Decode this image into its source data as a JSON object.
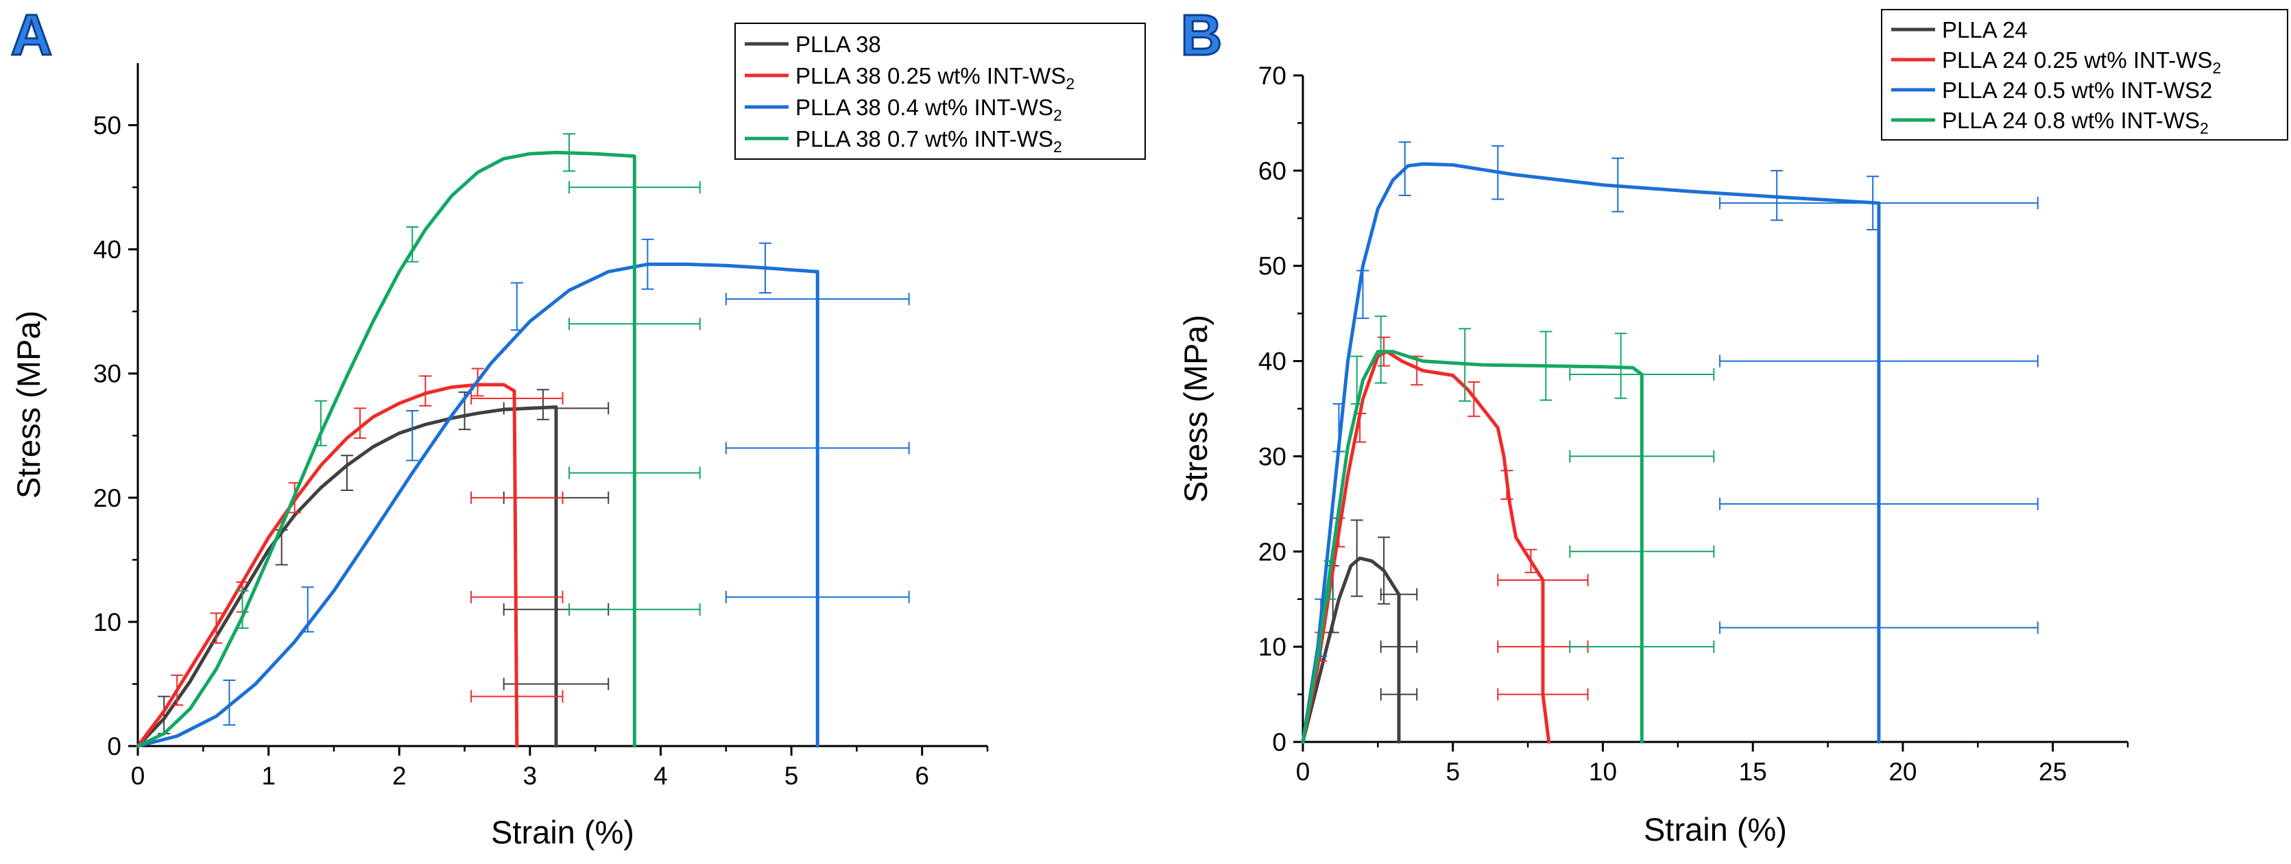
{
  "chart_data": [
    {
      "type": "line",
      "panel_label": "A",
      "xlabel": "Strain (%)",
      "ylabel": "Stress (MPa)",
      "xlim": [
        0,
        6.5
      ],
      "ylim": [
        0,
        55
      ],
      "xticks": [
        0,
        1,
        2,
        3,
        4,
        5,
        6
      ],
      "yticks": [
        0,
        10,
        20,
        30,
        40,
        50
      ],
      "legend_position": "top-right",
      "series": [
        {
          "name": "PLLA 38",
          "legend_main": "PLLA 38",
          "legend_sub": "",
          "legend_tail": "",
          "color": "#404040",
          "points": [
            [
              0,
              0
            ],
            [
              0.2,
              2.2
            ],
            [
              0.4,
              5.2
            ],
            [
              0.6,
              8.8
            ],
            [
              0.8,
              12.3
            ],
            [
              1.0,
              15.8
            ],
            [
              1.2,
              18.6
            ],
            [
              1.4,
              20.8
            ],
            [
              1.6,
              22.6
            ],
            [
              1.8,
              24.1
            ],
            [
              2.0,
              25.2
            ],
            [
              2.2,
              25.9
            ],
            [
              2.4,
              26.4
            ],
            [
              2.6,
              26.8
            ],
            [
              2.8,
              27.1
            ],
            [
              3.0,
              27.2
            ],
            [
              3.2,
              27.3
            ],
            [
              3.2,
              0
            ]
          ],
          "yerr": [
            [
              0.2,
              2.5,
              1.5
            ],
            [
              1.1,
              16,
              1.4
            ],
            [
              1.6,
              22,
              1.4
            ],
            [
              2.5,
              27,
              1.5
            ],
            [
              3.1,
              27.5,
              1.2
            ]
          ],
          "xerr": [
            [
              3.2,
              27.2,
              0.4
            ],
            [
              3.2,
              20,
              0.4
            ],
            [
              3.2,
              11,
              0.4
            ],
            [
              3.2,
              5,
              0.4
            ]
          ]
        },
        {
          "name": "PLLA 38 0.25 wt% INT-WS2",
          "legend_main": "PLLA 38 0.25 wt% INT-WS",
          "legend_sub": "2",
          "legend_tail": "",
          "color": "#ee2b2b",
          "points": [
            [
              0,
              0
            ],
            [
              0.2,
              2.8
            ],
            [
              0.4,
              6.2
            ],
            [
              0.6,
              9.6
            ],
            [
              0.8,
              13.2
            ],
            [
              1.0,
              16.8
            ],
            [
              1.2,
              19.8
            ],
            [
              1.4,
              22.6
            ],
            [
              1.6,
              24.8
            ],
            [
              1.8,
              26.5
            ],
            [
              2.0,
              27.6
            ],
            [
              2.2,
              28.4
            ],
            [
              2.4,
              28.9
            ],
            [
              2.6,
              29.1
            ],
            [
              2.8,
              29.1
            ],
            [
              2.88,
              28.6
            ],
            [
              2.9,
              0
            ]
          ],
          "yerr": [
            [
              0.3,
              4.5,
              1.2
            ],
            [
              0.6,
              9.5,
              1.2
            ],
            [
              0.8,
              12,
              1.2
            ],
            [
              1.2,
              20,
              1.2
            ],
            [
              1.7,
              26,
              1.2
            ],
            [
              2.2,
              28.6,
              1.2
            ],
            [
              2.6,
              29.3,
              1.1
            ]
          ],
          "xerr": [
            [
              2.9,
              28,
              0.35
            ],
            [
              2.9,
              20,
              0.35
            ],
            [
              2.9,
              12,
              0.35
            ],
            [
              2.9,
              4,
              0.35
            ]
          ]
        },
        {
          "name": "PLLA 38 0.4 wt% INT-WS2",
          "legend_main": "PLLA 38 0.4 wt% INT-WS",
          "legend_sub": "2",
          "legend_tail": "",
          "color": "#1c6fd6",
          "points": [
            [
              0,
              0
            ],
            [
              0.3,
              0.8
            ],
            [
              0.6,
              2.4
            ],
            [
              0.9,
              5.0
            ],
            [
              1.2,
              8.4
            ],
            [
              1.5,
              12.5
            ],
            [
              1.8,
              17.2
            ],
            [
              2.1,
              22.0
            ],
            [
              2.4,
              26.6
            ],
            [
              2.7,
              30.8
            ],
            [
              3.0,
              34.2
            ],
            [
              3.3,
              36.7
            ],
            [
              3.6,
              38.2
            ],
            [
              3.9,
              38.8
            ],
            [
              4.2,
              38.8
            ],
            [
              4.5,
              38.7
            ],
            [
              4.8,
              38.5
            ],
            [
              5.2,
              38.2
            ],
            [
              5.2,
              0
            ]
          ],
          "yerr": [
            [
              0.7,
              3.5,
              1.8
            ],
            [
              1.3,
              11,
              1.8
            ],
            [
              2.1,
              25,
              2.0
            ],
            [
              2.9,
              35.4,
              1.9
            ],
            [
              3.9,
              38.8,
              2.0
            ],
            [
              4.8,
              38.5,
              2.0
            ]
          ],
          "xerr": [
            [
              5.2,
              36,
              0.7
            ],
            [
              5.2,
              24,
              0.7
            ],
            [
              5.2,
              12,
              0.7
            ]
          ]
        },
        {
          "name": "PLLA 38 0.7 wt% INT-WS2",
          "legend_main": "PLLA 38 0.7 wt% INT-WS",
          "legend_sub": "2",
          "legend_tail": "",
          "color": "#12a862",
          "points": [
            [
              0,
              0
            ],
            [
              0.2,
              1.0
            ],
            [
              0.4,
              3.0
            ],
            [
              0.6,
              6.2
            ],
            [
              0.8,
              10.4
            ],
            [
              1.0,
              15.2
            ],
            [
              1.2,
              20.2
            ],
            [
              1.4,
              25.2
            ],
            [
              1.6,
              29.8
            ],
            [
              1.8,
              34.2
            ],
            [
              2.0,
              38.2
            ],
            [
              2.2,
              41.6
            ],
            [
              2.4,
              44.3
            ],
            [
              2.6,
              46.2
            ],
            [
              2.8,
              47.3
            ],
            [
              3.0,
              47.7
            ],
            [
              3.2,
              47.8
            ],
            [
              3.5,
              47.7
            ],
            [
              3.8,
              47.5
            ],
            [
              3.8,
              0
            ]
          ],
          "yerr": [
            [
              0.8,
              11,
              1.5
            ],
            [
              1.4,
              26,
              1.8
            ],
            [
              2.1,
              40.4,
              1.4
            ],
            [
              3.3,
              47.8,
              1.5
            ]
          ],
          "xerr": [
            [
              3.8,
              45,
              0.5
            ],
            [
              3.8,
              34,
              0.5
            ],
            [
              3.8,
              22,
              0.5
            ],
            [
              3.8,
              11,
              0.5
            ]
          ]
        }
      ]
    },
    {
      "type": "line",
      "panel_label": "B",
      "xlabel": "Strain (%)",
      "ylabel": "Stress (MPa)",
      "xlim": [
        0,
        27.5
      ],
      "ylim": [
        0,
        70
      ],
      "xticks": [
        0,
        5,
        10,
        15,
        20,
        25
      ],
      "yticks": [
        0,
        10,
        20,
        30,
        40,
        50,
        60,
        70
      ],
      "legend_position": "top-right",
      "series": [
        {
          "name": "PLLA 24",
          "legend_main": "PLLA 24",
          "legend_sub": "",
          "legend_tail": "",
          "color": "#404040",
          "points": [
            [
              0,
              0
            ],
            [
              0.4,
              5
            ],
            [
              0.8,
              10
            ],
            [
              1.2,
              15
            ],
            [
              1.6,
              18.5
            ],
            [
              1.9,
              19.3
            ],
            [
              2.3,
              19
            ],
            [
              2.7,
              18
            ],
            [
              3.0,
              16.5
            ],
            [
              3.2,
              15.5
            ],
            [
              3.2,
              0
            ]
          ],
          "yerr": [
            [
              1.0,
              15,
              3.5
            ],
            [
              1.8,
              19.3,
              4.0
            ],
            [
              2.7,
              18,
              3.5
            ]
          ],
          "xerr": [
            [
              3.2,
              15.5,
              0.6
            ],
            [
              3.2,
              10,
              0.6
            ],
            [
              3.2,
              5,
              0.6
            ]
          ]
        },
        {
          "name": "PLLA 24 0.25 wt% INT-WS2",
          "legend_main": "PLLA 24 0.25 wt% INT-WS",
          "legend_sub": "2",
          "legend_tail": "",
          "color": "#ee2b2b",
          "points": [
            [
              0,
              0
            ],
            [
              0.5,
              8
            ],
            [
              1.0,
              18
            ],
            [
              1.5,
              28
            ],
            [
              2.0,
              36
            ],
            [
              2.5,
              40.5
            ],
            [
              2.8,
              41
            ],
            [
              3.3,
              40
            ],
            [
              4.0,
              39
            ],
            [
              5.0,
              38.5
            ],
            [
              5.5,
              37
            ],
            [
              6.0,
              35
            ],
            [
              6.5,
              33
            ],
            [
              6.7,
              30
            ],
            [
              6.9,
              25
            ],
            [
              7.1,
              21.5
            ],
            [
              7.4,
              20
            ],
            [
              7.6,
              19
            ],
            [
              7.8,
              18
            ],
            [
              8.0,
              17
            ],
            [
              8.0,
              5
            ],
            [
              8.2,
              0
            ]
          ],
          "yerr": [
            [
              0.6,
              10,
              1.5
            ],
            [
              1.2,
              22,
              1.5
            ],
            [
              1.9,
              33,
              1.5
            ],
            [
              2.7,
              41,
              1.5
            ],
            [
              3.8,
              39,
              1.5
            ],
            [
              5.7,
              36,
              1.8
            ],
            [
              6.8,
              27,
              1.5
            ],
            [
              7.6,
              19,
              1.2
            ]
          ],
          "xerr": [
            [
              8.0,
              17,
              1.5
            ],
            [
              8.0,
              10,
              1.5
            ],
            [
              8.0,
              5,
              1.5
            ]
          ]
        },
        {
          "name": "PLLA 24 0.5 wt% INT-WS2",
          "legend_main": "PLLA 24 0.5 wt% INT-WS2",
          "legend_sub": "",
          "legend_tail": "",
          "color": "#1c6fd6",
          "points": [
            [
              0,
              0
            ],
            [
              0.5,
              10
            ],
            [
              1.0,
              25
            ],
            [
              1.5,
              40
            ],
            [
              2.0,
              50
            ],
            [
              2.5,
              56
            ],
            [
              3.0,
              59
            ],
            [
              3.5,
              60.5
            ],
            [
              4.0,
              60.7
            ],
            [
              5.0,
              60.6
            ],
            [
              7.0,
              59.6
            ],
            [
              10,
              58.5
            ],
            [
              13,
              57.8
            ],
            [
              16,
              57.2
            ],
            [
              19.2,
              56.6
            ],
            [
              19.2,
              0
            ]
          ],
          "yerr": [
            [
              0.6,
              12,
              3.0
            ],
            [
              1.2,
              33,
              2.5
            ],
            [
              2.0,
              47,
              2.5
            ],
            [
              3.4,
              60.2,
              2.8
            ],
            [
              6.5,
              59.8,
              2.8
            ],
            [
              10.5,
              58.5,
              2.8
            ],
            [
              15.8,
              57.4,
              2.6
            ],
            [
              19,
              56.6,
              2.8
            ]
          ],
          "xerr": [
            [
              19.2,
              56.6,
              5.3
            ],
            [
              19.2,
              40,
              5.3
            ],
            [
              19.2,
              25,
              5.3
            ],
            [
              19.2,
              12,
              5.3
            ]
          ]
        },
        {
          "name": "PLLA 24 0.8 wt% INT-WS2",
          "legend_main": "PLLA 24 0.8 wt% INT-WS",
          "legend_sub": "2",
          "legend_tail": "",
          "color": "#12a862",
          "points": [
            [
              0,
              0
            ],
            [
              0.5,
              9
            ],
            [
              1.0,
              20
            ],
            [
              1.5,
              31
            ],
            [
              2.0,
              38
            ],
            [
              2.5,
              41
            ],
            [
              3.0,
              41
            ],
            [
              4.0,
              40
            ],
            [
              6.0,
              39.6
            ],
            [
              8.0,
              39.5
            ],
            [
              10,
              39.4
            ],
            [
              11,
              39.3
            ],
            [
              11.3,
              38.6
            ],
            [
              11.3,
              0
            ]
          ],
          "yerr": [
            [
              0.9,
              17,
              2.0
            ],
            [
              1.8,
              38,
              2.5
            ],
            [
              2.6,
              41.2,
              3.5
            ],
            [
              5.4,
              39.6,
              3.8
            ],
            [
              8.1,
              39.5,
              3.6
            ],
            [
              10.6,
              39.5,
              3.4
            ]
          ],
          "xerr": [
            [
              11.3,
              38.6,
              2.4
            ],
            [
              11.3,
              30,
              2.4
            ],
            [
              11.3,
              20,
              2.4
            ],
            [
              11.3,
              10,
              2.4
            ]
          ]
        }
      ]
    }
  ]
}
